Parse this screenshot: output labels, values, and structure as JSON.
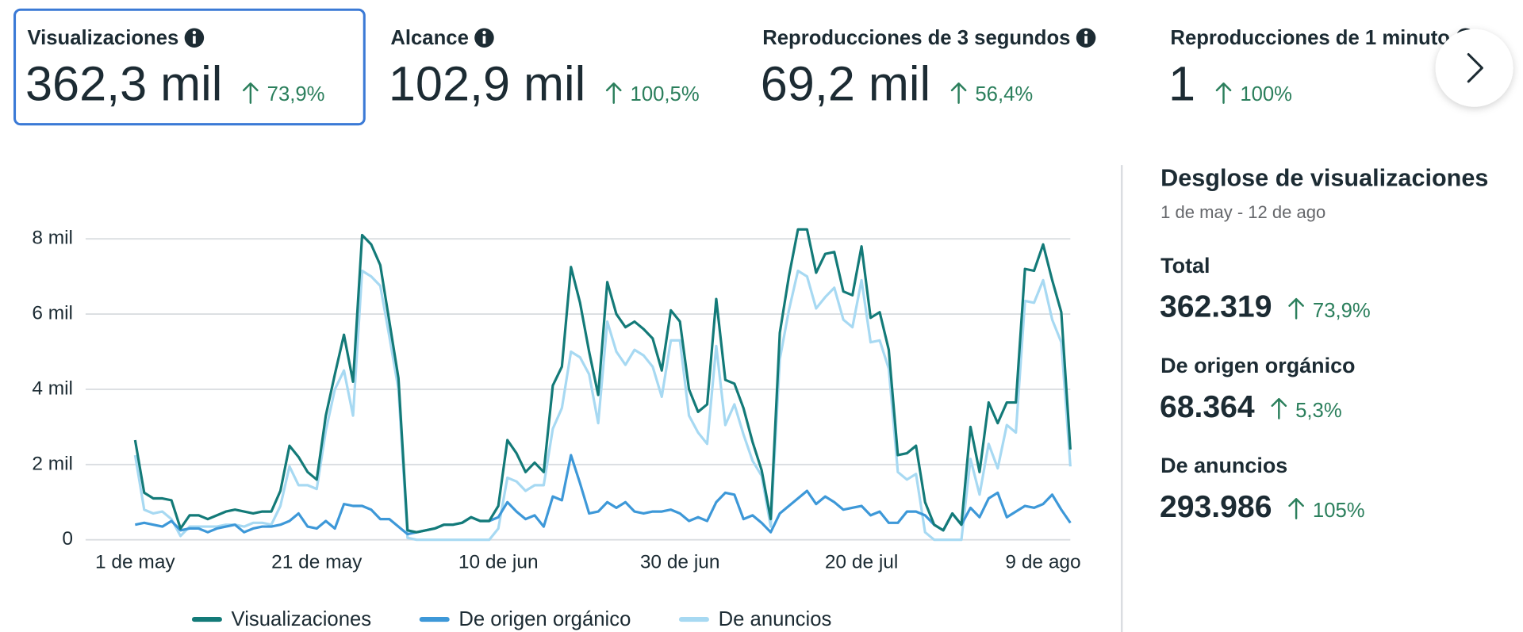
{
  "metrics": [
    {
      "label": "Visualizaciones",
      "value": "362,3 mil",
      "change": "73,9%"
    },
    {
      "label": "Alcance",
      "value": "102,9 mil",
      "change": "100,5%"
    },
    {
      "label": "Reproducciones de 3 segundos",
      "value": "69,2 mil",
      "change": "56,4%"
    },
    {
      "label": "Reproducciones de 1 minuto",
      "value": "1",
      "change": "100%"
    }
  ],
  "chart_data": {
    "type": "line",
    "categories": [
      "1 de may",
      null,
      null,
      null,
      null,
      null,
      null,
      null,
      null,
      null,
      null,
      null,
      null,
      null,
      null,
      null,
      null,
      null,
      null,
      null,
      "21 de may",
      null,
      null,
      null,
      null,
      null,
      null,
      null,
      null,
      null,
      null,
      null,
      null,
      null,
      null,
      null,
      null,
      null,
      null,
      null,
      "10 de jun",
      null,
      null,
      null,
      null,
      null,
      null,
      null,
      null,
      null,
      null,
      null,
      null,
      null,
      null,
      null,
      null,
      null,
      null,
      null,
      "30 de jun",
      null,
      null,
      null,
      null,
      null,
      null,
      null,
      null,
      null,
      null,
      null,
      null,
      null,
      null,
      null,
      null,
      null,
      null,
      null,
      "20 de jul",
      null,
      null,
      null,
      null,
      null,
      null,
      null,
      null,
      null,
      null,
      null,
      null,
      null,
      null,
      null,
      null,
      null,
      null,
      null,
      "9 de ago",
      null,
      null,
      null
    ],
    "series": [
      {
        "name": "Visualizaciones",
        "color": "#137a78",
        "values": [
          2650,
          1250,
          1100,
          1100,
          1050,
          300,
          650,
          650,
          550,
          650,
          750,
          800,
          750,
          700,
          750,
          750,
          1300,
          2500,
          2200,
          1800,
          1600,
          3300,
          4400,
          5450,
          4200,
          8100,
          7850,
          7300,
          5800,
          4300,
          250,
          200,
          250,
          300,
          400,
          400,
          450,
          600,
          500,
          500,
          900,
          2650,
          2300,
          1800,
          2050,
          1800,
          4100,
          4600,
          7250,
          6300,
          5000,
          3850,
          6850,
          6000,
          5650,
          5800,
          5600,
          5350,
          4500,
          6100,
          5800,
          4000,
          3400,
          3600,
          6400,
          4250,
          4150,
          3500,
          2600,
          1850,
          550,
          5500,
          7000,
          8250,
          8250,
          7100,
          7600,
          7650,
          6600,
          6500,
          7800,
          5900,
          6050,
          5050,
          2250,
          2300,
          2500,
          1000,
          400,
          250,
          700,
          400,
          3000,
          1800,
          3650,
          3100,
          3650,
          3650,
          7200,
          7150,
          7850,
          6900,
          6050,
          2400
        ]
      },
      {
        "name": "De origen orgánico",
        "color": "#3d98d8",
        "values": [
          400,
          450,
          400,
          350,
          500,
          250,
          300,
          300,
          200,
          300,
          350,
          400,
          200,
          300,
          350,
          350,
          400,
          500,
          700,
          350,
          300,
          500,
          300,
          950,
          900,
          900,
          800,
          550,
          550,
          350,
          150,
          200,
          250,
          300,
          400,
          400,
          450,
          600,
          500,
          500,
          600,
          1000,
          750,
          550,
          650,
          350,
          1150,
          1050,
          2250,
          1500,
          700,
          750,
          1000,
          850,
          1000,
          750,
          700,
          750,
          750,
          800,
          700,
          500,
          600,
          500,
          1000,
          1250,
          1200,
          550,
          650,
          450,
          200,
          700,
          900,
          1100,
          1300,
          950,
          1150,
          1000,
          800,
          850,
          900,
          650,
          750,
          450,
          450,
          750,
          750,
          650,
          400,
          250,
          700,
          400,
          850,
          600,
          1100,
          1250,
          600,
          750,
          900,
          850,
          950,
          1200,
          800,
          450
        ]
      },
      {
        "name": "De anuncios",
        "color": "#a7d9f2",
        "values": [
          2250,
          800,
          700,
          750,
          550,
          100,
          350,
          350,
          350,
          350,
          400,
          400,
          350,
          450,
          450,
          400,
          900,
          1950,
          1450,
          1450,
          1350,
          2900,
          4000,
          4500,
          3300,
          7150,
          7000,
          6750,
          5400,
          4000,
          50,
          0,
          0,
          0,
          0,
          0,
          0,
          0,
          0,
          0,
          300,
          1650,
          1550,
          1300,
          1450,
          1450,
          2950,
          3500,
          5000,
          4850,
          4400,
          3100,
          5800,
          5000,
          4650,
          5050,
          4900,
          4600,
          3800,
          5300,
          5300,
          3300,
          2850,
          2550,
          5150,
          3050,
          3600,
          2800,
          2100,
          1700,
          350,
          4800,
          6100,
          7150,
          7000,
          6150,
          6450,
          6700,
          5850,
          5650,
          6900,
          5250,
          5300,
          4550,
          1800,
          1600,
          1750,
          200,
          0,
          0,
          0,
          0,
          2150,
          1200,
          2550,
          1900,
          3050,
          2850,
          6350,
          6300,
          6900,
          5850,
          5250,
          1950
        ]
      }
    ],
    "ylim": [
      0,
      8000
    ],
    "yticks": [
      0,
      {
        "value": 2000,
        "label": "2 mil"
      },
      {
        "value": 4000,
        "label": "4 mil"
      },
      {
        "value": 6000,
        "label": "6 mil"
      },
      {
        "value": 8000,
        "label": "8 mil"
      }
    ],
    "grid": true,
    "legend": "bottom"
  },
  "breakdown": {
    "title": "Desglose de visualizaciones",
    "date_range": "1 de may - 12 de ago",
    "items": [
      {
        "label": "Total",
        "value": "362.319",
        "change": "73,9%"
      },
      {
        "label": "De origen orgánico",
        "value": "68.364",
        "change": "5,3%"
      },
      {
        "label": "De anuncios",
        "value": "293.986",
        "change": "105%"
      }
    ]
  }
}
